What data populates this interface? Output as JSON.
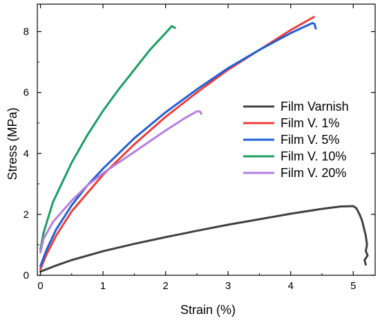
{
  "chart_data": {
    "type": "line",
    "title": "",
    "xlabel": "Strain (%)",
    "ylabel": "Stress (MPa)",
    "xlim": [
      -0.05,
      5.35
    ],
    "ylim": [
      0,
      8.9
    ],
    "xticks": [
      "0",
      "1",
      "2",
      "3",
      "4",
      "5"
    ],
    "yticks": [
      "0",
      "2",
      "4",
      "6",
      "8"
    ],
    "grid": false,
    "legend_position": "right",
    "series": [
      {
        "name": "Film Varnish",
        "color": "#404040",
        "x": [
          0.0,
          0.25,
          0.5,
          1.0,
          1.5,
          2.0,
          2.5,
          3.0,
          3.5,
          4.0,
          4.5,
          4.8,
          5.0,
          5.05,
          5.1,
          5.14,
          5.17,
          5.2,
          5.22,
          5.2,
          5.23,
          5.18,
          5.2
        ],
        "y": [
          0.12,
          0.32,
          0.5,
          0.79,
          1.03,
          1.25,
          1.46,
          1.66,
          1.84,
          2.02,
          2.18,
          2.26,
          2.27,
          2.2,
          2.0,
          1.8,
          1.55,
          1.3,
          1.0,
          0.8,
          0.65,
          0.5,
          0.35
        ]
      },
      {
        "name": "Film V. 1%",
        "color": "#ef3b3b",
        "x": [
          0.0,
          0.1,
          0.25,
          0.5,
          0.75,
          1.0,
          1.5,
          2.0,
          2.5,
          3.0,
          3.5,
          4.0,
          4.37
        ],
        "y": [
          0.2,
          0.7,
          1.3,
          2.1,
          2.7,
          3.3,
          4.3,
          5.2,
          6.0,
          6.75,
          7.4,
          8.05,
          8.48
        ]
      },
      {
        "name": "Film V. 5%",
        "color": "#1f5fd6",
        "x": [
          0.0,
          0.1,
          0.25,
          0.5,
          0.75,
          1.0,
          1.5,
          2.0,
          2.5,
          3.0,
          3.5,
          4.0,
          4.35,
          4.38,
          4.4
        ],
        "y": [
          0.3,
          0.85,
          1.5,
          2.3,
          2.95,
          3.5,
          4.5,
          5.35,
          6.1,
          6.8,
          7.4,
          7.95,
          8.28,
          8.25,
          8.1
        ]
      },
      {
        "name": "Film V. 10%",
        "color": "#1a9e62",
        "x": [
          0.0,
          0.05,
          0.2,
          0.5,
          0.75,
          1.0,
          1.25,
          1.5,
          1.75,
          2.0,
          2.1,
          2.15
        ],
        "y": [
          0.85,
          1.4,
          2.4,
          3.7,
          4.6,
          5.4,
          6.1,
          6.75,
          7.4,
          7.95,
          8.18,
          8.12
        ]
      },
      {
        "name": "Film V. 20%",
        "color": "#b47fe0",
        "x": [
          0.0,
          0.05,
          0.2,
          0.5,
          0.75,
          1.0,
          1.5,
          2.0,
          2.3,
          2.5,
          2.55,
          2.57
        ],
        "y": [
          0.75,
          1.2,
          1.75,
          2.45,
          2.95,
          3.35,
          4.05,
          4.75,
          5.15,
          5.38,
          5.38,
          5.3
        ]
      }
    ]
  }
}
